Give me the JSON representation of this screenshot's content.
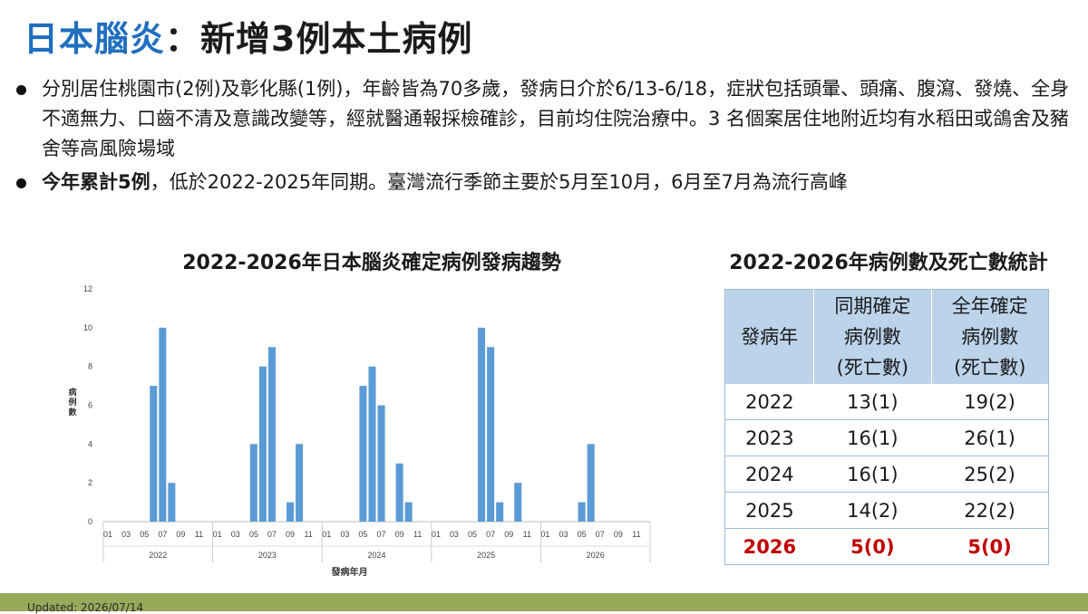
{
  "title": {
    "part1": "日本腦炎",
    "part2": "：新增3例本土病例"
  },
  "bullets": [
    {
      "bold": "",
      "text": "分別居住桃園市(2例)及彰化縣(1例)，年齡皆為70多歲，發病日介於6/13-6/18，症狀包括頭暈、頭痛、腹瀉、發燒、全身不適無力、口齒不清及意識改變等，經就醫通報採檢確診，目前均住院治療中。3 名個案居住地附近均有水稻田或鴿舍及豬舍等高風險場域"
    },
    {
      "bold": "今年累計5例",
      "text": "，低於2022-2025年同期。臺灣流行季節主要於5月至10月，6月至7月為流行高峰"
    }
  ],
  "chart_data": [
    {
      "type": "bar",
      "title": "2022-2026年日本腦炎確定病例發病趨勢",
      "xlabel": "發病年月",
      "ylabel": "病例數",
      "ylim": [
        0,
        12
      ],
      "yticks": [
        0,
        2,
        4,
        6,
        8,
        10,
        12
      ],
      "years": [
        "2022",
        "2023",
        "2024",
        "2025",
        "2026"
      ],
      "month_tick_labels": [
        "01",
        "03",
        "05",
        "07",
        "09",
        "11"
      ],
      "color": "#5b9bd5",
      "series": [
        {
          "year": "2022",
          "values": [
            0,
            0,
            0,
            0,
            0,
            7,
            10,
            2,
            0,
            0,
            0,
            0
          ]
        },
        {
          "year": "2023",
          "values": [
            0,
            0,
            0,
            0,
            4,
            8,
            9,
            0,
            1,
            4,
            0,
            0
          ]
        },
        {
          "year": "2024",
          "values": [
            0,
            0,
            0,
            0,
            7,
            8,
            6,
            0,
            3,
            1,
            0,
            0
          ]
        },
        {
          "year": "2025",
          "values": [
            0,
            0,
            0,
            0,
            0,
            10,
            9,
            1,
            0,
            2,
            0,
            0
          ]
        },
        {
          "year": "2026",
          "values": [
            0,
            0,
            0,
            0,
            1,
            4,
            0,
            0,
            0,
            0,
            0,
            0
          ]
        }
      ]
    },
    {
      "type": "table",
      "title": "2022-2026年病例數及死亡數統計",
      "headers": [
        [
          "發病年"
        ],
        [
          "同期確定",
          "病例數",
          "(死亡數)"
        ],
        [
          "全年確定",
          "病例數",
          "(死亡數)"
        ]
      ],
      "rows": [
        {
          "year": "2022",
          "same_period": "13(1)",
          "full_year": "19(2)"
        },
        {
          "year": "2023",
          "same_period": "16(1)",
          "full_year": "26(1)"
        },
        {
          "year": "2024",
          "same_period": "16(1)",
          "full_year": "25(2)"
        },
        {
          "year": "2025",
          "same_period": "14(2)",
          "full_year": "22(2)"
        },
        {
          "year": "2026",
          "same_period": "5(0)",
          "full_year": "5(0)",
          "highlight": true
        }
      ]
    }
  ],
  "footer": {
    "updated": "Updated: 2026/07/14"
  },
  "colors": {
    "title_accent": "#1f6fbf",
    "bar": "#5b9bd5",
    "table_header": "#bcd3ea",
    "highlight": "#c00000",
    "footer_bar": "#98a95a"
  }
}
